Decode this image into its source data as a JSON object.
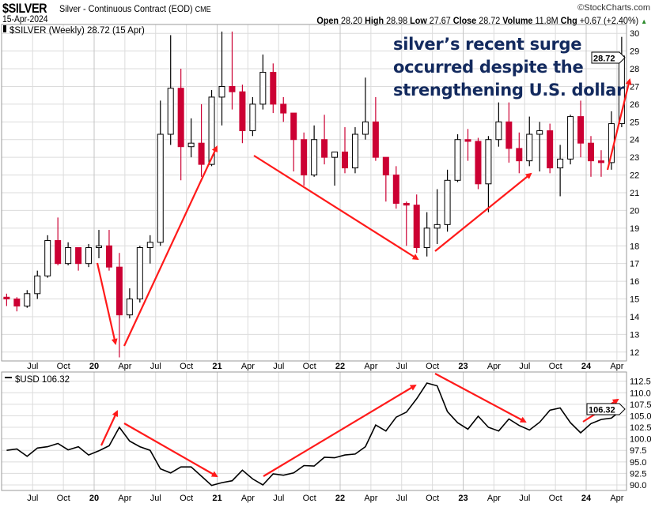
{
  "header": {
    "symbol": "$SILVER",
    "description": "Silver - Continuous Contract (EOD)",
    "exchange": "CME",
    "date": "15-Apr-2024",
    "copyright": "©StockCharts.com",
    "open_label": "Open",
    "open": "28.20",
    "high_label": "High",
    "high": "28.98",
    "low_label": "Low",
    "low": "27.67",
    "close_label": "Close",
    "close": "28.72",
    "volume_label": "Volume",
    "volume": "11.8M",
    "chg_label": "Chg",
    "chg": "+0.67 (+2.40%)",
    "chg_icon": "triangle-up-icon"
  },
  "annotation": [
    "silver’s recent surge",
    "occurred despite the",
    "strengthening U.S. dollar"
  ],
  "colors": {
    "up": "#000000",
    "down": "#cc0033",
    "arrow": "#ff1a1a",
    "annotation": "#132a5e",
    "grid": "#dcdcdc"
  },
  "chart_data": [
    {
      "type": "candlestick",
      "title": "$SILVER (Weekly) 28.72 (15 Apr)",
      "last_value_label": "28.72",
      "ylim": [
        11.5,
        30.5
      ],
      "yticks": [
        12,
        13,
        14,
        15,
        16,
        17,
        18,
        19,
        20,
        21,
        22,
        23,
        24,
        25,
        26,
        27,
        28,
        29,
        30
      ],
      "grid": true,
      "start": "2019-04",
      "ohlc": [
        [
          15.1,
          15.3,
          14.6,
          15.0
        ],
        [
          15.0,
          15.1,
          14.3,
          14.6
        ],
        [
          14.6,
          15.5,
          14.5,
          15.3
        ],
        [
          15.3,
          16.6,
          15.0,
          16.3
        ],
        [
          16.3,
          18.6,
          16.2,
          18.3
        ],
        [
          18.3,
          19.6,
          16.9,
          17.0
        ],
        [
          17.0,
          18.2,
          16.9,
          17.9
        ],
        [
          17.9,
          17.9,
          16.6,
          17.0
        ],
        [
          17.0,
          18.1,
          16.8,
          17.9
        ],
        [
          17.9,
          18.9,
          17.3,
          18.0
        ],
        [
          18.0,
          18.9,
          16.6,
          16.8
        ],
        [
          16.8,
          17.6,
          11.7,
          14.1
        ],
        [
          14.1,
          15.6,
          13.9,
          15.0
        ],
        [
          15.0,
          18.0,
          14.8,
          17.9
        ],
        [
          17.9,
          18.6,
          17.0,
          18.2
        ],
        [
          18.2,
          26.2,
          18.0,
          24.3
        ],
        [
          24.3,
          29.9,
          23.7,
          26.9
        ],
        [
          26.9,
          28.0,
          21.7,
          23.6
        ],
        [
          23.6,
          25.2,
          23.0,
          23.8
        ],
        [
          23.8,
          26.0,
          21.9,
          22.6
        ],
        [
          22.6,
          26.8,
          22.5,
          26.4
        ],
        [
          26.4,
          30.1,
          24.8,
          27.0
        ],
        [
          27.0,
          30.1,
          25.7,
          26.7
        ],
        [
          26.7,
          27.1,
          23.8,
          24.5
        ],
        [
          24.5,
          26.4,
          24.2,
          26.0
        ],
        [
          26.0,
          28.8,
          25.7,
          27.8
        ],
        [
          27.8,
          28.3,
          25.5,
          26.0
        ],
        [
          26.0,
          26.4,
          25.0,
          25.5
        ],
        [
          25.5,
          25.5,
          22.2,
          24.0
        ],
        [
          24.0,
          24.4,
          21.4,
          22.0
        ],
        [
          22.0,
          24.8,
          21.9,
          24.0
        ],
        [
          24.0,
          25.4,
          22.6,
          23.0
        ],
        [
          23.0,
          23.3,
          21.4,
          23.3
        ],
        [
          23.3,
          24.7,
          22.1,
          22.4
        ],
        [
          22.4,
          24.7,
          22.1,
          24.3
        ],
        [
          24.3,
          27.5,
          24.0,
          25.0
        ],
        [
          25.0,
          26.4,
          22.8,
          23.0
        ],
        [
          23.0,
          23.0,
          20.5,
          22.0
        ],
        [
          22.0,
          22.5,
          20.1,
          20.4
        ],
        [
          20.4,
          20.5,
          18.0,
          20.3
        ],
        [
          20.3,
          20.9,
          17.6,
          17.9
        ],
        [
          17.9,
          19.9,
          17.4,
          19.0
        ],
        [
          19.0,
          21.2,
          18.1,
          19.2
        ],
        [
          19.2,
          22.3,
          18.8,
          21.7
        ],
        [
          21.7,
          24.3,
          21.6,
          24.0
        ],
        [
          24.0,
          24.6,
          22.8,
          23.9
        ],
        [
          23.9,
          24.1,
          21.2,
          21.5
        ],
        [
          21.5,
          24.2,
          19.9,
          24.0
        ],
        [
          24.0,
          26.1,
          23.6,
          25.0
        ],
        [
          25.0,
          26.1,
          22.7,
          23.5
        ],
        [
          23.5,
          24.4,
          22.1,
          22.8
        ],
        [
          22.8,
          25.3,
          22.5,
          24.3
        ],
        [
          24.3,
          25.0,
          22.2,
          24.5
        ],
        [
          24.5,
          24.9,
          22.1,
          22.4
        ],
        [
          22.4,
          23.7,
          20.8,
          22.9
        ],
        [
          22.9,
          25.4,
          22.6,
          25.3
        ],
        [
          25.3,
          26.2,
          23.0,
          23.8
        ],
        [
          23.8,
          24.2,
          21.9,
          22.8
        ],
        [
          22.8,
          23.4,
          21.9,
          22.7
        ],
        [
          22.7,
          25.6,
          22.3,
          24.9
        ],
        [
          24.9,
          29.8,
          24.7,
          28.72
        ]
      ]
    },
    {
      "type": "line",
      "title": "$USD 106.32",
      "last_value_label": "106.32",
      "ylim": [
        88.8,
        114.5
      ],
      "yticks": [
        "90.0",
        "92.5",
        "95.0",
        "97.5",
        "100.0",
        "102.5",
        "105.0",
        "107.5",
        "110.0",
        "112.5"
      ],
      "grid": true,
      "start": "2019-04",
      "values": [
        97.5,
        97.8,
        96.2,
        98.0,
        98.3,
        99.0,
        97.6,
        98.3,
        96.5,
        97.4,
        98.5,
        102.5,
        99.5,
        98.3,
        97.5,
        93.5,
        92.6,
        93.9,
        93.9,
        91.9,
        89.9,
        90.5,
        90.9,
        93.2,
        91.3,
        90.0,
        92.4,
        92.1,
        92.6,
        94.2,
        94.1,
        96.0,
        95.9,
        96.5,
        96.7,
        98.3,
        103.0,
        101.7,
        104.7,
        105.8,
        108.7,
        112.1,
        111.5,
        105.9,
        103.5,
        102.1,
        104.9,
        102.5,
        101.7,
        104.3,
        102.9,
        101.9,
        103.6,
        106.2,
        106.7,
        103.5,
        101.3,
        103.3,
        104.2,
        104.5,
        106.32
      ]
    }
  ],
  "xticks": [
    {
      "label": "Jul",
      "date": "2019-07",
      "bold": false
    },
    {
      "label": "Oct",
      "date": "2019-10",
      "bold": false
    },
    {
      "label": "20",
      "date": "2020-01",
      "bold": true
    },
    {
      "label": "Apr",
      "date": "2020-04",
      "bold": false
    },
    {
      "label": "Jul",
      "date": "2020-07",
      "bold": false
    },
    {
      "label": "Oct",
      "date": "2020-10",
      "bold": false
    },
    {
      "label": "21",
      "date": "2021-01",
      "bold": true
    },
    {
      "label": "Apr",
      "date": "2021-04",
      "bold": false
    },
    {
      "label": "Jul",
      "date": "2021-07",
      "bold": false
    },
    {
      "label": "Oct",
      "date": "2021-10",
      "bold": false
    },
    {
      "label": "22",
      "date": "2022-01",
      "bold": true
    },
    {
      "label": "Apr",
      "date": "2022-04",
      "bold": false
    },
    {
      "label": "Jul",
      "date": "2022-07",
      "bold": false
    },
    {
      "label": "Oct",
      "date": "2022-10",
      "bold": false
    },
    {
      "label": "23",
      "date": "2023-01",
      "bold": true
    },
    {
      "label": "Apr",
      "date": "2023-04",
      "bold": false
    },
    {
      "label": "Jul",
      "date": "2023-07",
      "bold": false
    },
    {
      "label": "Oct",
      "date": "2023-10",
      "bold": false
    },
    {
      "label": "24",
      "date": "2024-01",
      "bold": true
    },
    {
      "label": "Apr",
      "date": "2024-04",
      "bold": false
    }
  ]
}
